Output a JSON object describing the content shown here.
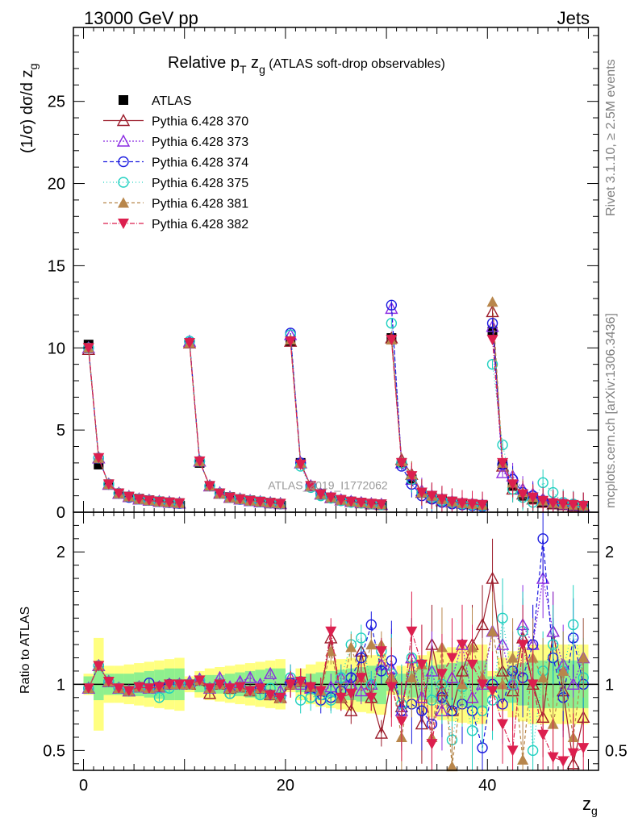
{
  "header": {
    "left": "13000 GeV pp",
    "right": "Jets",
    "side_top": "Rivet 3.1.10, ≥ 2.5M events",
    "side_bottom": "mcplots.cern.ch [arXiv:1306.3436]"
  },
  "title": {
    "main": "Relative p",
    "sub1": "T",
    "main2": " z",
    "sub2": "g",
    "small": " (ATLAS soft-drop observables)"
  },
  "watermark": "ATLAS_2019_I1772062",
  "axes": {
    "xlabel": "z",
    "xlabel_sub": "g",
    "ylabel_top": "(1/σ) dσ/d z",
    "ylabel_top_sub": "g",
    "ylabel_bottom": "Ratio to ATLAS"
  },
  "chart_data": [
    {
      "type": "scatter",
      "panel": "main",
      "xlim": [
        -1,
        51
      ],
      "ylim": [
        0,
        29.5
      ],
      "xticks": [
        0,
        20,
        40
      ],
      "yticks": [
        0,
        5,
        10,
        15,
        20,
        25
      ],
      "legend_position": "top-left",
      "groups_x_start": [
        0,
        10,
        20,
        30,
        40
      ],
      "series": [
        {
          "name": "ATLAS",
          "color": "#000000",
          "marker": "square-filled",
          "groups": [
            [
              10.2,
              2.9,
              1.7,
              1.15,
              0.95,
              0.82,
              0.73,
              0.66,
              0.6,
              0.55
            ],
            [
              10.3,
              3.0,
              1.6,
              1.15,
              0.92,
              0.8,
              0.72,
              0.65,
              0.58,
              0.52
            ],
            [
              10.4,
              3.0,
              1.6,
              1.1,
              0.9,
              0.75,
              0.65,
              0.58,
              0.52,
              0.48
            ],
            [
              10.6,
              3.0,
              2.0,
              1.2,
              1.0,
              0.8,
              0.65,
              0.55,
              0.5,
              0.45
            ],
            [
              11.0,
              2.9,
              1.6,
              1.0,
              0.8,
              0.6,
              0.5,
              0.45,
              0.4,
              0.35
            ]
          ]
        },
        {
          "name": "Pythia 6.428 370",
          "color": "#9b1b2a",
          "marker": "triangle-up-open",
          "dash": "",
          "groups": [
            [
              9.9,
              3.3,
              1.7,
              1.15,
              0.95,
              0.8,
              0.72,
              0.65,
              0.6,
              0.55
            ],
            [
              10.3,
              3.1,
              1.6,
              1.15,
              0.9,
              0.8,
              0.7,
              0.64,
              0.57,
              0.52
            ],
            [
              10.4,
              3.0,
              1.6,
              1.1,
              0.88,
              0.74,
              0.64,
              0.57,
              0.5,
              0.46
            ],
            [
              10.6,
              3.2,
              2.3,
              1.2,
              0.9,
              0.7,
              0.6,
              0.55,
              0.5,
              0.45
            ],
            [
              12.2,
              2.8,
              1.4,
              1.1,
              0.8,
              0.6,
              0.5,
              0.45,
              0.35,
              0.3
            ]
          ]
        },
        {
          "name": "Pythia 6.428 373",
          "color": "#8a2be2",
          "marker": "triangle-up-open",
          "dash": "2,2",
          "groups": [
            [
              10.0,
              3.3,
              1.7,
              1.15,
              0.95,
              0.8,
              0.72,
              0.65,
              0.6,
              0.55
            ],
            [
              10.4,
              3.1,
              1.6,
              1.18,
              0.92,
              0.8,
              0.7,
              0.63,
              0.57,
              0.52
            ],
            [
              10.8,
              3.0,
              1.6,
              1.1,
              0.9,
              0.75,
              0.65,
              0.58,
              0.52,
              0.48
            ],
            [
              12.4,
              3.0,
              2.0,
              1.3,
              1.0,
              0.8,
              0.65,
              0.55,
              0.5,
              0.45
            ],
            [
              11.3,
              2.4,
              2.2,
              1.4,
              1.1,
              0.8,
              0.6,
              0.5,
              0.45,
              0.4
            ]
          ]
        },
        {
          "name": "Pythia 6.428 374",
          "color": "#1a1adf",
          "marker": "circle-open",
          "dash": "5,3",
          "groups": [
            [
              10.0,
              3.3,
              1.7,
              1.15,
              0.9,
              0.8,
              0.72,
              0.64,
              0.58,
              0.53
            ],
            [
              10.4,
              3.1,
              1.6,
              1.15,
              0.9,
              0.78,
              0.7,
              0.63,
              0.56,
              0.51
            ],
            [
              10.9,
              3.0,
              1.6,
              1.1,
              0.88,
              0.73,
              0.64,
              0.57,
              0.5,
              0.46
            ],
            [
              12.6,
              2.8,
              1.7,
              1.0,
              0.8,
              0.6,
              0.5,
              0.45,
              0.4,
              0.35
            ],
            [
              11.5,
              2.9,
              2.0,
              1.2,
              1.0,
              0.7,
              0.55,
              0.5,
              0.45,
              0.4
            ]
          ]
        },
        {
          "name": "Pythia 6.428 375",
          "color": "#1fd0c0",
          "marker": "circle-open",
          "dash": "1,3",
          "groups": [
            [
              10.0,
              3.3,
              1.7,
              1.15,
              0.95,
              0.8,
              0.72,
              0.65,
              0.6,
              0.55
            ],
            [
              10.4,
              3.1,
              1.6,
              1.15,
              0.9,
              0.8,
              0.7,
              0.63,
              0.57,
              0.52
            ],
            [
              10.8,
              2.8,
              1.5,
              1.0,
              0.85,
              0.7,
              0.6,
              0.55,
              0.5,
              0.45
            ],
            [
              11.5,
              3.0,
              2.0,
              1.2,
              0.9,
              0.7,
              0.6,
              0.5,
              0.45,
              0.4
            ],
            [
              9.0,
              4.1,
              1.4,
              0.9,
              0.6,
              1.8,
              1.2,
              0.6,
              0.5,
              0.4
            ]
          ]
        },
        {
          "name": "Pythia 6.428 381",
          "color": "#b8864b",
          "marker": "triangle-up-filled",
          "dash": "4,3",
          "groups": [
            [
              10.0,
              3.3,
              1.7,
              1.15,
              0.95,
              0.8,
              0.72,
              0.65,
              0.6,
              0.55
            ],
            [
              10.3,
              3.1,
              1.6,
              1.15,
              0.9,
              0.8,
              0.7,
              0.64,
              0.57,
              0.52
            ],
            [
              10.5,
              3.0,
              1.6,
              1.1,
              0.9,
              0.75,
              0.65,
              0.58,
              0.52,
              0.48
            ],
            [
              10.5,
              3.1,
              2.3,
              1.2,
              1.0,
              0.8,
              0.65,
              0.55,
              0.5,
              0.45
            ],
            [
              12.8,
              3.0,
              1.8,
              1.2,
              0.9,
              0.7,
              0.55,
              0.5,
              0.45,
              0.4
            ]
          ]
        },
        {
          "name": "Pythia 6.428 382",
          "color": "#dc1f4e",
          "marker": "triangle-down-filled",
          "dash": "6,2,1,2",
          "groups": [
            [
              10.0,
              3.3,
              1.7,
              1.15,
              0.95,
              0.8,
              0.72,
              0.65,
              0.6,
              0.55
            ],
            [
              10.3,
              3.1,
              1.6,
              1.15,
              0.9,
              0.8,
              0.7,
              0.64,
              0.57,
              0.52
            ],
            [
              10.4,
              2.9,
              1.6,
              1.1,
              0.9,
              0.75,
              0.65,
              0.58,
              0.52,
              0.48
            ],
            [
              10.5,
              3.0,
              2.2,
              1.2,
              1.0,
              0.8,
              0.65,
              0.55,
              0.5,
              0.45
            ],
            [
              10.5,
              3.0,
              1.7,
              1.1,
              0.9,
              0.7,
              0.55,
              0.5,
              0.45,
              0.4
            ]
          ]
        }
      ]
    },
    {
      "type": "scatter",
      "panel": "ratio",
      "xlim": [
        -1,
        51
      ],
      "ylim": [
        0.35,
        2.3
      ],
      "yticks": [
        0.5,
        1,
        2
      ],
      "x": [
        0.5,
        1.5,
        2.5,
        3.5,
        4.5,
        5.5,
        6.5,
        7.5,
        8.5,
        9.5,
        10.5,
        11.5,
        12.5,
        13.5,
        14.5,
        15.5,
        16.5,
        17.5,
        18.5,
        19.5,
        20.5,
        21.5,
        22.5,
        23.5,
        24.5,
        25.5,
        26.5,
        27.5,
        28.5,
        29.5,
        30.5,
        31.5,
        32.5,
        33.5,
        34.5,
        35.5,
        36.5,
        37.5,
        38.5,
        39.5,
        40.5,
        41.5,
        42.5,
        43.5,
        44.5,
        45.5,
        46.5,
        47.5,
        48.5,
        49.5
      ],
      "band_inner": [
        0.06,
        0.12,
        0.08,
        0.08,
        0.08,
        0.09,
        0.1,
        0.11,
        0.12,
        0.12,
        0.04,
        0.06,
        0.07,
        0.07,
        0.08,
        0.09,
        0.1,
        0.11,
        0.12,
        0.12,
        0.04,
        0.06,
        0.08,
        0.09,
        0.1,
        0.11,
        0.12,
        0.13,
        0.14,
        0.15,
        0.05,
        0.08,
        0.1,
        0.12,
        0.14,
        0.15,
        0.16,
        0.17,
        0.18,
        0.18,
        0.06,
        0.12,
        0.14,
        0.16,
        0.18,
        0.18,
        0.18,
        0.18,
        0.18,
        0.18
      ],
      "band_outer": [
        0.08,
        0.35,
        0.14,
        0.14,
        0.15,
        0.16,
        0.17,
        0.18,
        0.19,
        0.2,
        0.06,
        0.1,
        0.12,
        0.13,
        0.14,
        0.15,
        0.16,
        0.17,
        0.18,
        0.19,
        0.06,
        0.12,
        0.15,
        0.17,
        0.18,
        0.19,
        0.2,
        0.21,
        0.22,
        0.23,
        0.08,
        0.14,
        0.18,
        0.22,
        0.25,
        0.27,
        0.28,
        0.29,
        0.3,
        0.3,
        0.1,
        0.2,
        0.25,
        0.28,
        0.3,
        0.3,
        0.3,
        0.3,
        0.3,
        0.3
      ],
      "series": [
        {
          "name": "Pythia 6.428 370",
          "values": [
            0.97,
            1.14,
            1.02,
            0.97,
            0.95,
            0.98,
            0.97,
            0.98,
            1.0,
            1.0,
            1.0,
            1.03,
            0.93,
            1.0,
            0.97,
            0.98,
            0.95,
            0.97,
            0.92,
            0.9,
            1.0,
            1.02,
            0.98,
            0.95,
            1.35,
            0.9,
            0.8,
            1.25,
            0.9,
            0.63,
            1.05,
            0.83,
            1.2,
            0.7,
            1.3,
            0.95,
            0.8,
            1.1,
            1.3,
            1.45,
            1.8,
            1.1,
            0.95,
            1.35,
            1.0,
            0.75,
            1.4,
            0.95,
            0.4,
            0.75
          ]
        },
        {
          "name": "Pythia 6.428 373",
          "values": [
            0.97,
            1.14,
            1.02,
            0.97,
            0.95,
            0.98,
            0.97,
            0.98,
            1.0,
            1.0,
            1.02,
            1.04,
            0.97,
            1.05,
            0.98,
            1.02,
            1.05,
            1.0,
            1.08,
            0.95,
            1.05,
            1.0,
            0.97,
            0.95,
            0.98,
            1.05,
            1.0,
            0.95,
            1.0,
            1.15,
            1.12,
            0.8,
            1.2,
            0.9,
            1.1,
            0.8,
            1.05,
            1.3,
            0.9,
            1.0,
            1.4,
            1.3,
            1.0,
            1.45,
            1.3,
            1.8,
            1.4,
            1.15,
            1.0,
            1.2
          ]
        },
        {
          "name": "Pythia 6.428 374",
          "values": [
            0.97,
            1.14,
            1.02,
            0.97,
            0.95,
            0.98,
            1.01,
            0.98,
            1.0,
            1.0,
            1.0,
            1.03,
            0.97,
            1.0,
            0.93,
            0.98,
            0.95,
            0.97,
            0.92,
            0.9,
            1.01,
            1.02,
            0.97,
            0.88,
            0.9,
            0.95,
            1.05,
            1.2,
            1.45,
            1.1,
            1.18,
            0.8,
            0.85,
            0.8,
            0.7,
            0.9,
            0.8,
            0.85,
            0.8,
            0.52,
            1.0,
            0.85,
            1.1,
            1.05,
            1.3,
            2.1,
            1.2,
            0.9,
            1.35,
            1.0
          ]
        },
        {
          "name": "Pythia 6.428 375",
          "values": [
            0.97,
            1.14,
            1.02,
            0.97,
            0.95,
            0.98,
            0.97,
            0.9,
            0.97,
            1.0,
            1.0,
            1.03,
            0.97,
            1.0,
            0.93,
            0.98,
            0.95,
            0.92,
            0.97,
            0.9,
            1.05,
            0.88,
            0.9,
            0.92,
            0.88,
            1.05,
            1.3,
            1.35,
            1.0,
            1.25,
            1.08,
            0.85,
            1.2,
            1.15,
            0.88,
            1.0,
            0.58,
            0.98,
            0.65,
            0.8,
            0.88,
            1.5,
            1.0,
            1.4,
            0.5,
            1.1,
            1.3,
            1.1,
            1.45,
            1.05
          ]
        },
        {
          "name": "Pythia 6.428 381",
          "values": [
            0.97,
            1.14,
            1.02,
            0.97,
            0.95,
            0.98,
            0.97,
            0.98,
            1.0,
            1.0,
            1.0,
            1.03,
            0.97,
            1.0,
            0.97,
            0.98,
            0.95,
            0.97,
            0.92,
            0.9,
            1.0,
            1.02,
            0.98,
            0.95,
            1.25,
            0.9,
            1.28,
            1.05,
            1.3,
            1.3,
            1.05,
            0.6,
            1.05,
            1.15,
            0.6,
            1.28,
            0.38,
            1.0,
            1.28,
            1.05,
            1.4,
            1.0,
            1.2,
            0.43,
            1.2,
            1.05,
            0.7,
            1.1,
            0.6,
            1.2
          ]
        },
        {
          "name": "Pythia 6.428 382",
          "values": [
            0.97,
            1.14,
            1.02,
            0.97,
            0.95,
            0.98,
            0.97,
            0.98,
            1.0,
            1.0,
            1.0,
            1.03,
            0.97,
            1.0,
            0.97,
            0.98,
            0.95,
            0.97,
            0.92,
            0.9,
            1.0,
            1.02,
            0.98,
            0.95,
            1.4,
            0.9,
            0.93,
            1.05,
            0.9,
            1.25,
            0.98,
            0.72,
            1.4,
            1.15,
            0.55,
            1.08,
            1.2,
            1.3,
            1.15,
            1.0,
            0.95,
            0.7,
            0.5,
            1.3,
            1.0,
            0.62,
            0.45,
            0.42,
            0.48,
            0.52
          ]
        }
      ]
    }
  ]
}
